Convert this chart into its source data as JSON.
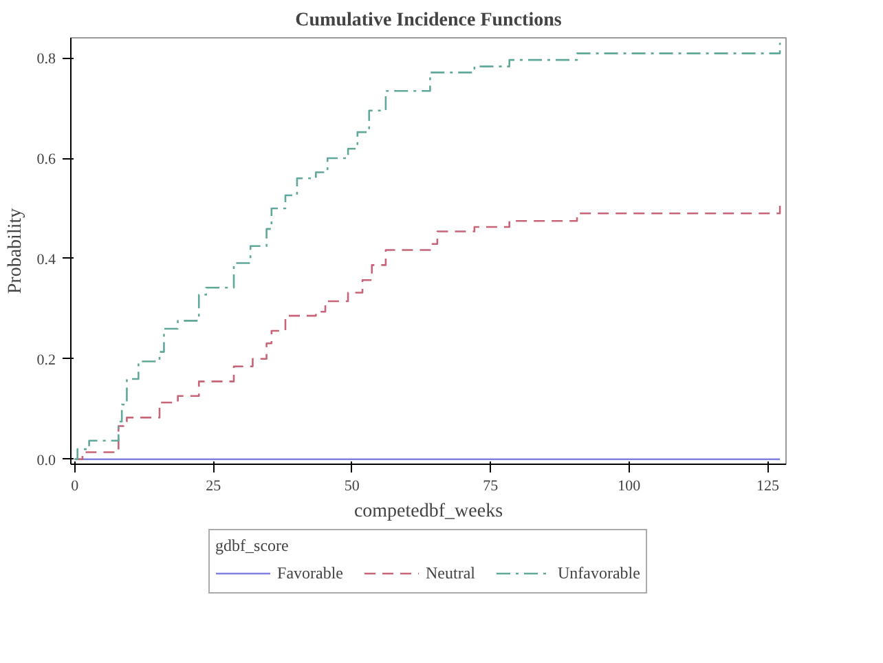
{
  "chart_data": {
    "type": "step",
    "title": "Cumulative Incidence Functions",
    "xlabel": "competedbf_weeks",
    "ylabel": "Probability",
    "legend_title": "gdbf_score",
    "legend": "bottom",
    "grid": false,
    "xlim": [
      -0.7,
      128.3
    ],
    "ylim": [
      -0.01,
      0.84
    ],
    "xticks": [
      0,
      25,
      50,
      75,
      100,
      125
    ],
    "yticks": [
      {
        "value": 0,
        "label": "0.0"
      },
      0.2,
      0.4,
      0.6,
      0.8
    ],
    "series": [
      {
        "name": "Favorable",
        "color": "#8080e0",
        "line_style": "solid",
        "x": [
          0,
          127.2
        ],
        "values": [
          0,
          0
        ]
      },
      {
        "name": "Neutral",
        "color": "#c86478",
        "line_style": "dashed",
        "x": [
          0,
          1.4,
          7.9,
          9.4,
          15.3,
          18.6,
          22.4,
          28.7,
          32.1,
          34.6,
          35.5,
          38,
          43.5,
          45.2,
          49.3,
          51.9,
          53.6,
          56.1,
          64.1,
          65.4,
          72.1,
          78.4,
          90.6,
          127.2
        ],
        "values": [
          0,
          0.014,
          0.066,
          0.083,
          0.113,
          0.126,
          0.155,
          0.185,
          0.2,
          0.231,
          0.256,
          0.286,
          0.294,
          0.315,
          0.332,
          0.357,
          0.387,
          0.417,
          0.429,
          0.454,
          0.463,
          0.475,
          0.49,
          0.513
        ]
      },
      {
        "name": "Unfavorable",
        "color": "#5fa89a",
        "line_style": "dashdot",
        "x": [
          0,
          0.5,
          2.6,
          7.9,
          8.5,
          9.4,
          11.5,
          15.3,
          16.1,
          18.6,
          22.4,
          23.7,
          28.7,
          31.7,
          34.6,
          35.5,
          38,
          40.1,
          43.5,
          45.6,
          49.3,
          51,
          53.1,
          56.1,
          64.1,
          72.1,
          78.4,
          90.6,
          127.2
        ],
        "values": [
          0,
          0.02,
          0.037,
          0.075,
          0.109,
          0.16,
          0.195,
          0.214,
          0.26,
          0.276,
          0.328,
          0.342,
          0.391,
          0.425,
          0.459,
          0.5,
          0.526,
          0.56,
          0.572,
          0.6,
          0.619,
          0.652,
          0.695,
          0.734,
          0.771,
          0.783,
          0.796,
          0.809,
          0.83
        ]
      }
    ]
  }
}
